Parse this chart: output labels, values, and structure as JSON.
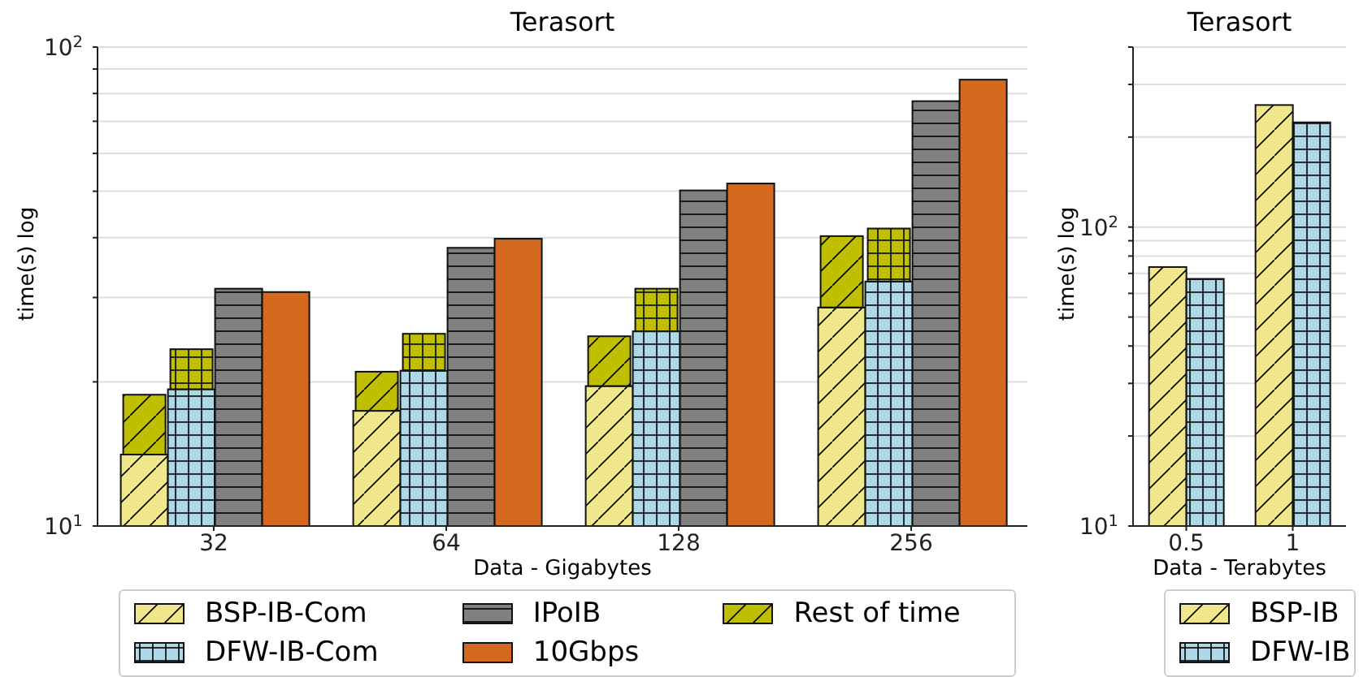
{
  "chart_data": [
    {
      "type": "bar",
      "title": "Terasort",
      "xlabel": "Data - Gigabytes",
      "ylabel": "time(s) log",
      "log": true,
      "grid": "y",
      "legend": "bottom",
      "categories": [
        "32",
        "64",
        "128",
        "256"
      ],
      "ylim": [
        10,
        100
      ],
      "yticks": [
        {
          "value": 10,
          "label": "10$^{1}$"
        },
        {
          "value": 20,
          "label": null
        },
        {
          "value": 30,
          "label": null
        },
        {
          "value": 40,
          "label": null
        },
        {
          "value": 50,
          "label": null
        },
        {
          "value": 60,
          "label": null
        },
        {
          "value": 70,
          "label": null
        },
        {
          "value": 80,
          "label": null
        },
        {
          "value": 90,
          "label": null
        },
        {
          "value": 100,
          "label": "10$^{2}$"
        }
      ],
      "series": [
        {
          "name": "BSP-IB-Com",
          "color": "#f0e68c",
          "values": [
            14.1,
            17.4,
            19.6,
            28.6
          ]
        },
        {
          "name": "Rest of time",
          "color": "#bfbf00",
          "values": [
            4.7,
            3.6,
            5.3,
            11.7
          ],
          "base": [
            14.1,
            17.4,
            19.6,
            28.6
          ]
        },
        {
          "name": "DFW-IB-Com",
          "color": "#add8e6",
          "values": [
            19.3,
            21.1,
            25.5,
            32.4
          ]
        },
        {
          "color": "#bfbf00",
          "values": [
            4.1,
            4.1,
            5.8,
            9.4
          ],
          "base": [
            19.3,
            21.1,
            25.5,
            32.4
          ]
        },
        {
          "name": "IPoIB",
          "color": "#808080",
          "values": [
            31.3,
            38.1,
            50.2,
            77.1
          ]
        },
        {
          "name": "10Gbps",
          "color": "#d2691e",
          "values": [
            30.8,
            39.8,
            51.9,
            85.5
          ]
        }
      ]
    },
    {
      "type": "bar",
      "title": "Terasort",
      "xlabel": "Data - Terabytes",
      "ylabel": "time(s) log",
      "log": true,
      "grid": "y",
      "legend": "bottom",
      "categories": [
        "0.5",
        "1"
      ],
      "ylim": [
        10,
        400
      ],
      "yticks": [
        {
          "value": 10,
          "label": "10$^{1}$"
        },
        {
          "value": 20,
          "label": null
        },
        {
          "value": 30,
          "label": null
        },
        {
          "value": 40,
          "label": null
        },
        {
          "value": 50,
          "label": null
        },
        {
          "value": 60,
          "label": null
        },
        {
          "value": 70,
          "label": null
        },
        {
          "value": 80,
          "label": null
        },
        {
          "value": 90,
          "label": null
        },
        {
          "value": 100,
          "label": "10$^{2}$"
        },
        {
          "value": 200,
          "label": null
        },
        {
          "value": 300,
          "label": null
        },
        {
          "value": 400,
          "label": null
        }
      ],
      "series": [
        {
          "name": "BSP-IB",
          "color": "#f0e68c",
          "values": [
            73.5,
            256
          ]
        },
        {
          "name": "DFW-IB",
          "color": "#add8e6",
          "values": [
            67.1,
            224
          ]
        }
      ]
    }
  ]
}
